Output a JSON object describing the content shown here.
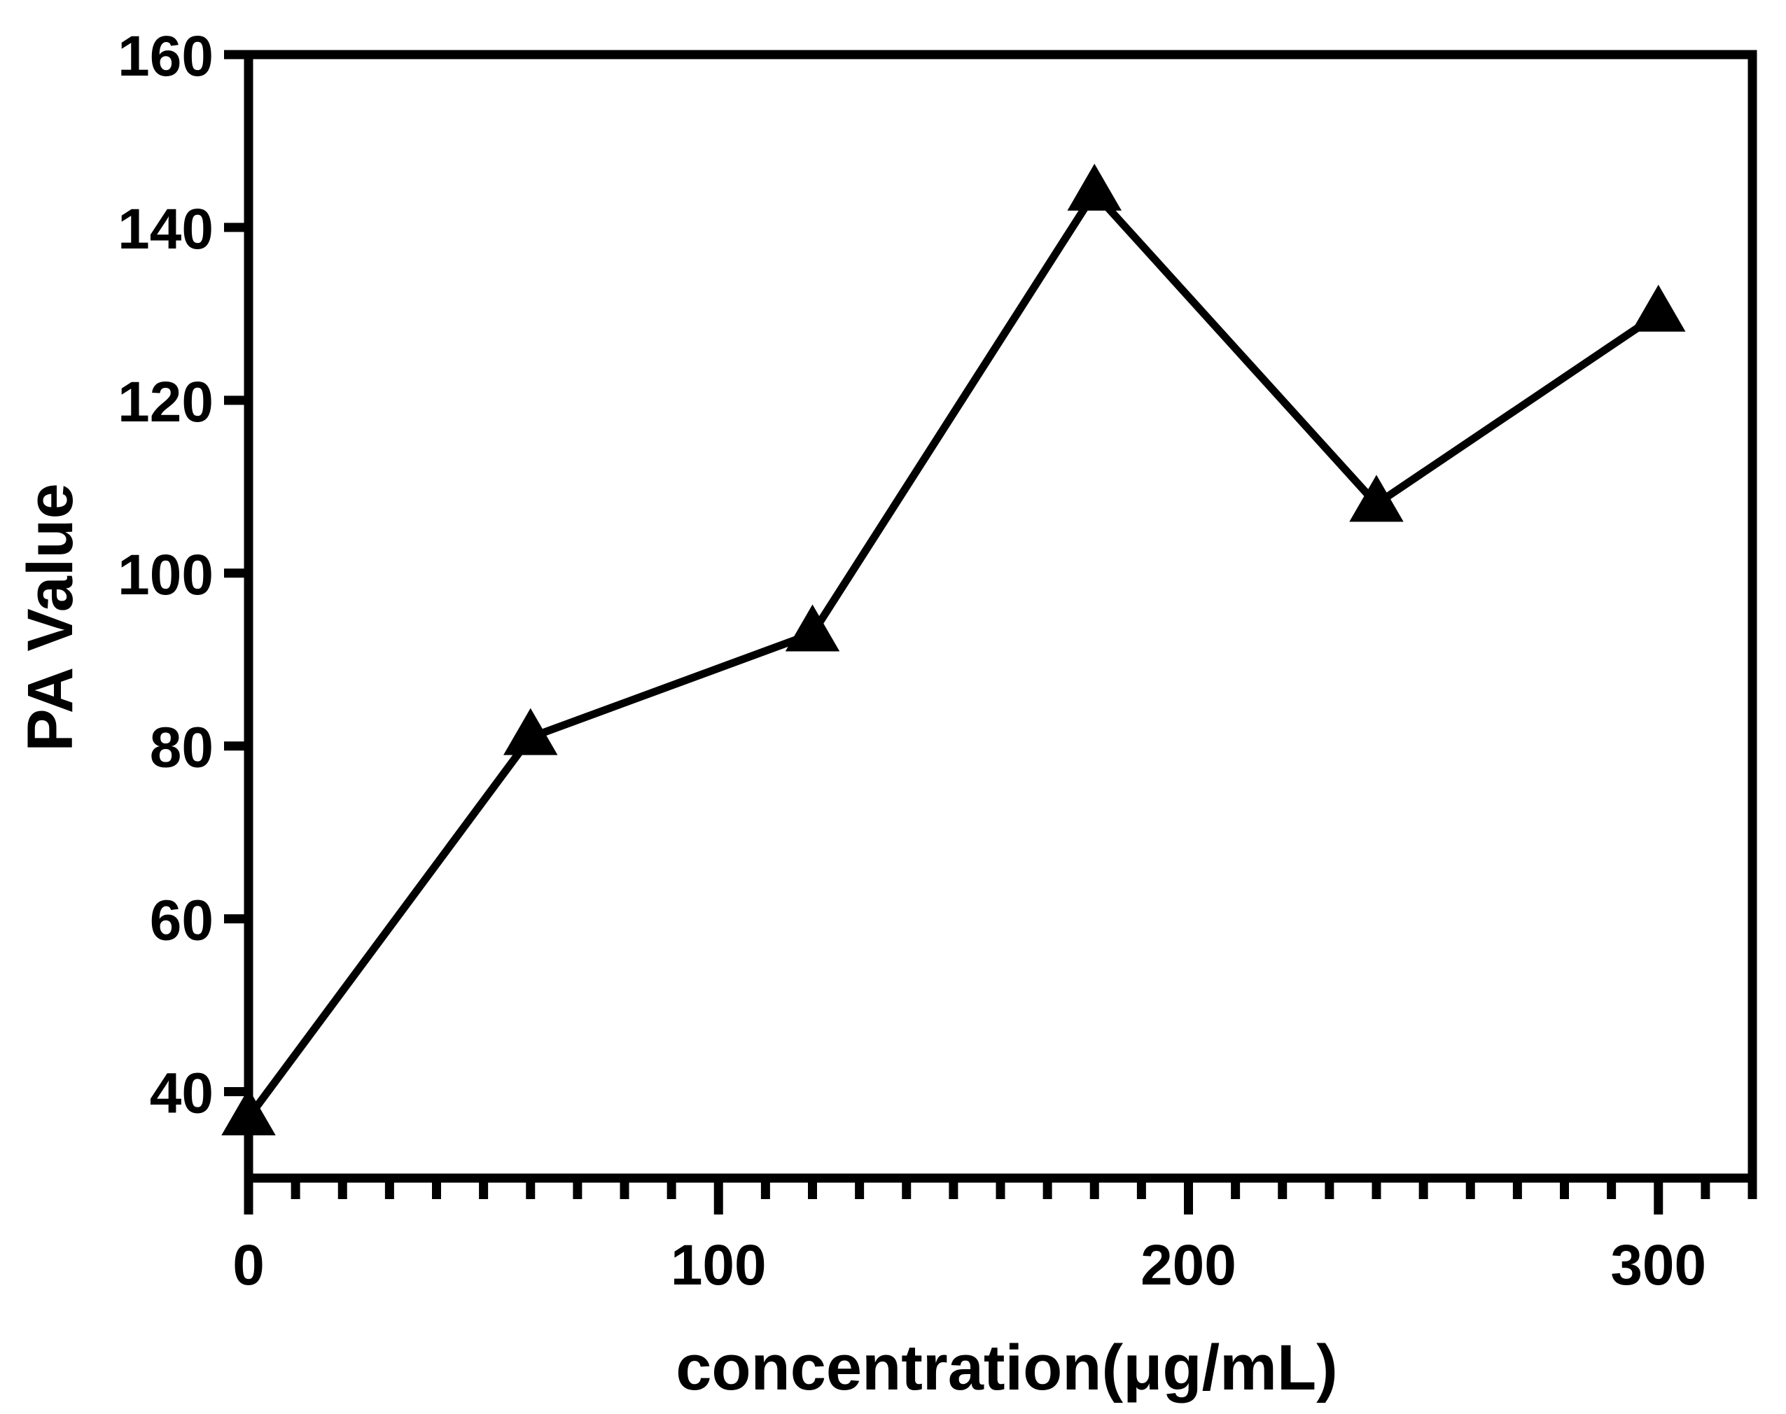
{
  "chart_data": {
    "type": "line",
    "title": "",
    "xlabel": "concentration(μg/mL)",
    "ylabel": "PA Value",
    "xlim": [
      0,
      320
    ],
    "ylim": [
      30,
      160
    ],
    "xticks": [
      0,
      100,
      200,
      300
    ],
    "yticks": [
      40,
      60,
      80,
      100,
      120,
      140,
      160
    ],
    "x_minor_step": 10,
    "grid": false,
    "legend": "none",
    "marker": "triangle",
    "color": "#000000",
    "series": [
      {
        "x": [
          0,
          60,
          120,
          180,
          240,
          300
        ],
        "values": [
          37,
          81,
          93,
          144,
          108,
          130
        ]
      }
    ]
  }
}
